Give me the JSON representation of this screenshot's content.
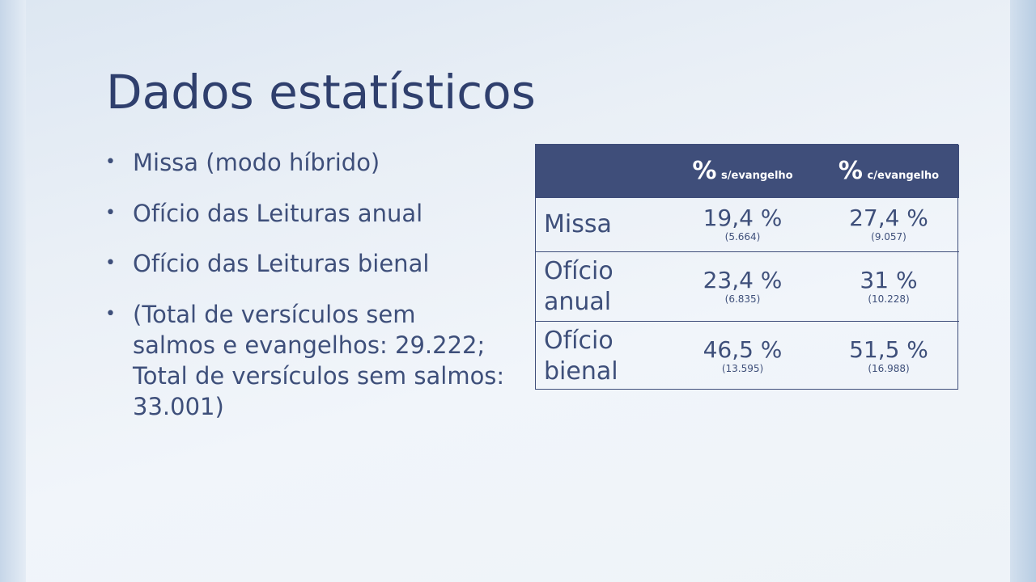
{
  "slide": {
    "title": "Dados estatísticos",
    "bullets": [
      "Missa (modo híbrido)",
      "Ofício das Leituras anual",
      "Ofício das Leituras bienal",
      "(Total de versículos sem salmos e evangelhos: 29.222; Total de versículos sem salmos: 33.001)"
    ],
    "bullet_symbol": "•"
  },
  "table": {
    "headers": [
      {
        "pct": "",
        "sub": ""
      },
      {
        "pct": "%",
        "sub": "s/evangelho"
      },
      {
        "pct": "%",
        "sub": "c/evangelho"
      }
    ],
    "rows": [
      {
        "label": "Missa",
        "values": [
          {
            "pct": "19,4 %",
            "count": "(5.664)"
          },
          {
            "pct": "27,4 %",
            "count": "(9.057)"
          }
        ]
      },
      {
        "label": "Ofício anual",
        "values": [
          {
            "pct": "23,4 %",
            "count": "(6.835)"
          },
          {
            "pct": "31 %",
            "count": "(10.228)"
          }
        ]
      },
      {
        "label": "Ofício bienal",
        "values": [
          {
            "pct": "46,5 %",
            "count": "(13.595)"
          },
          {
            "pct": "51,5 %",
            "count": "(16.988)"
          }
        ]
      }
    ]
  },
  "colors": {
    "title": "#2f3f6d",
    "text": "#3e4f7a",
    "header_bg": "#3f4e7a",
    "header_text": "#ffffff"
  }
}
